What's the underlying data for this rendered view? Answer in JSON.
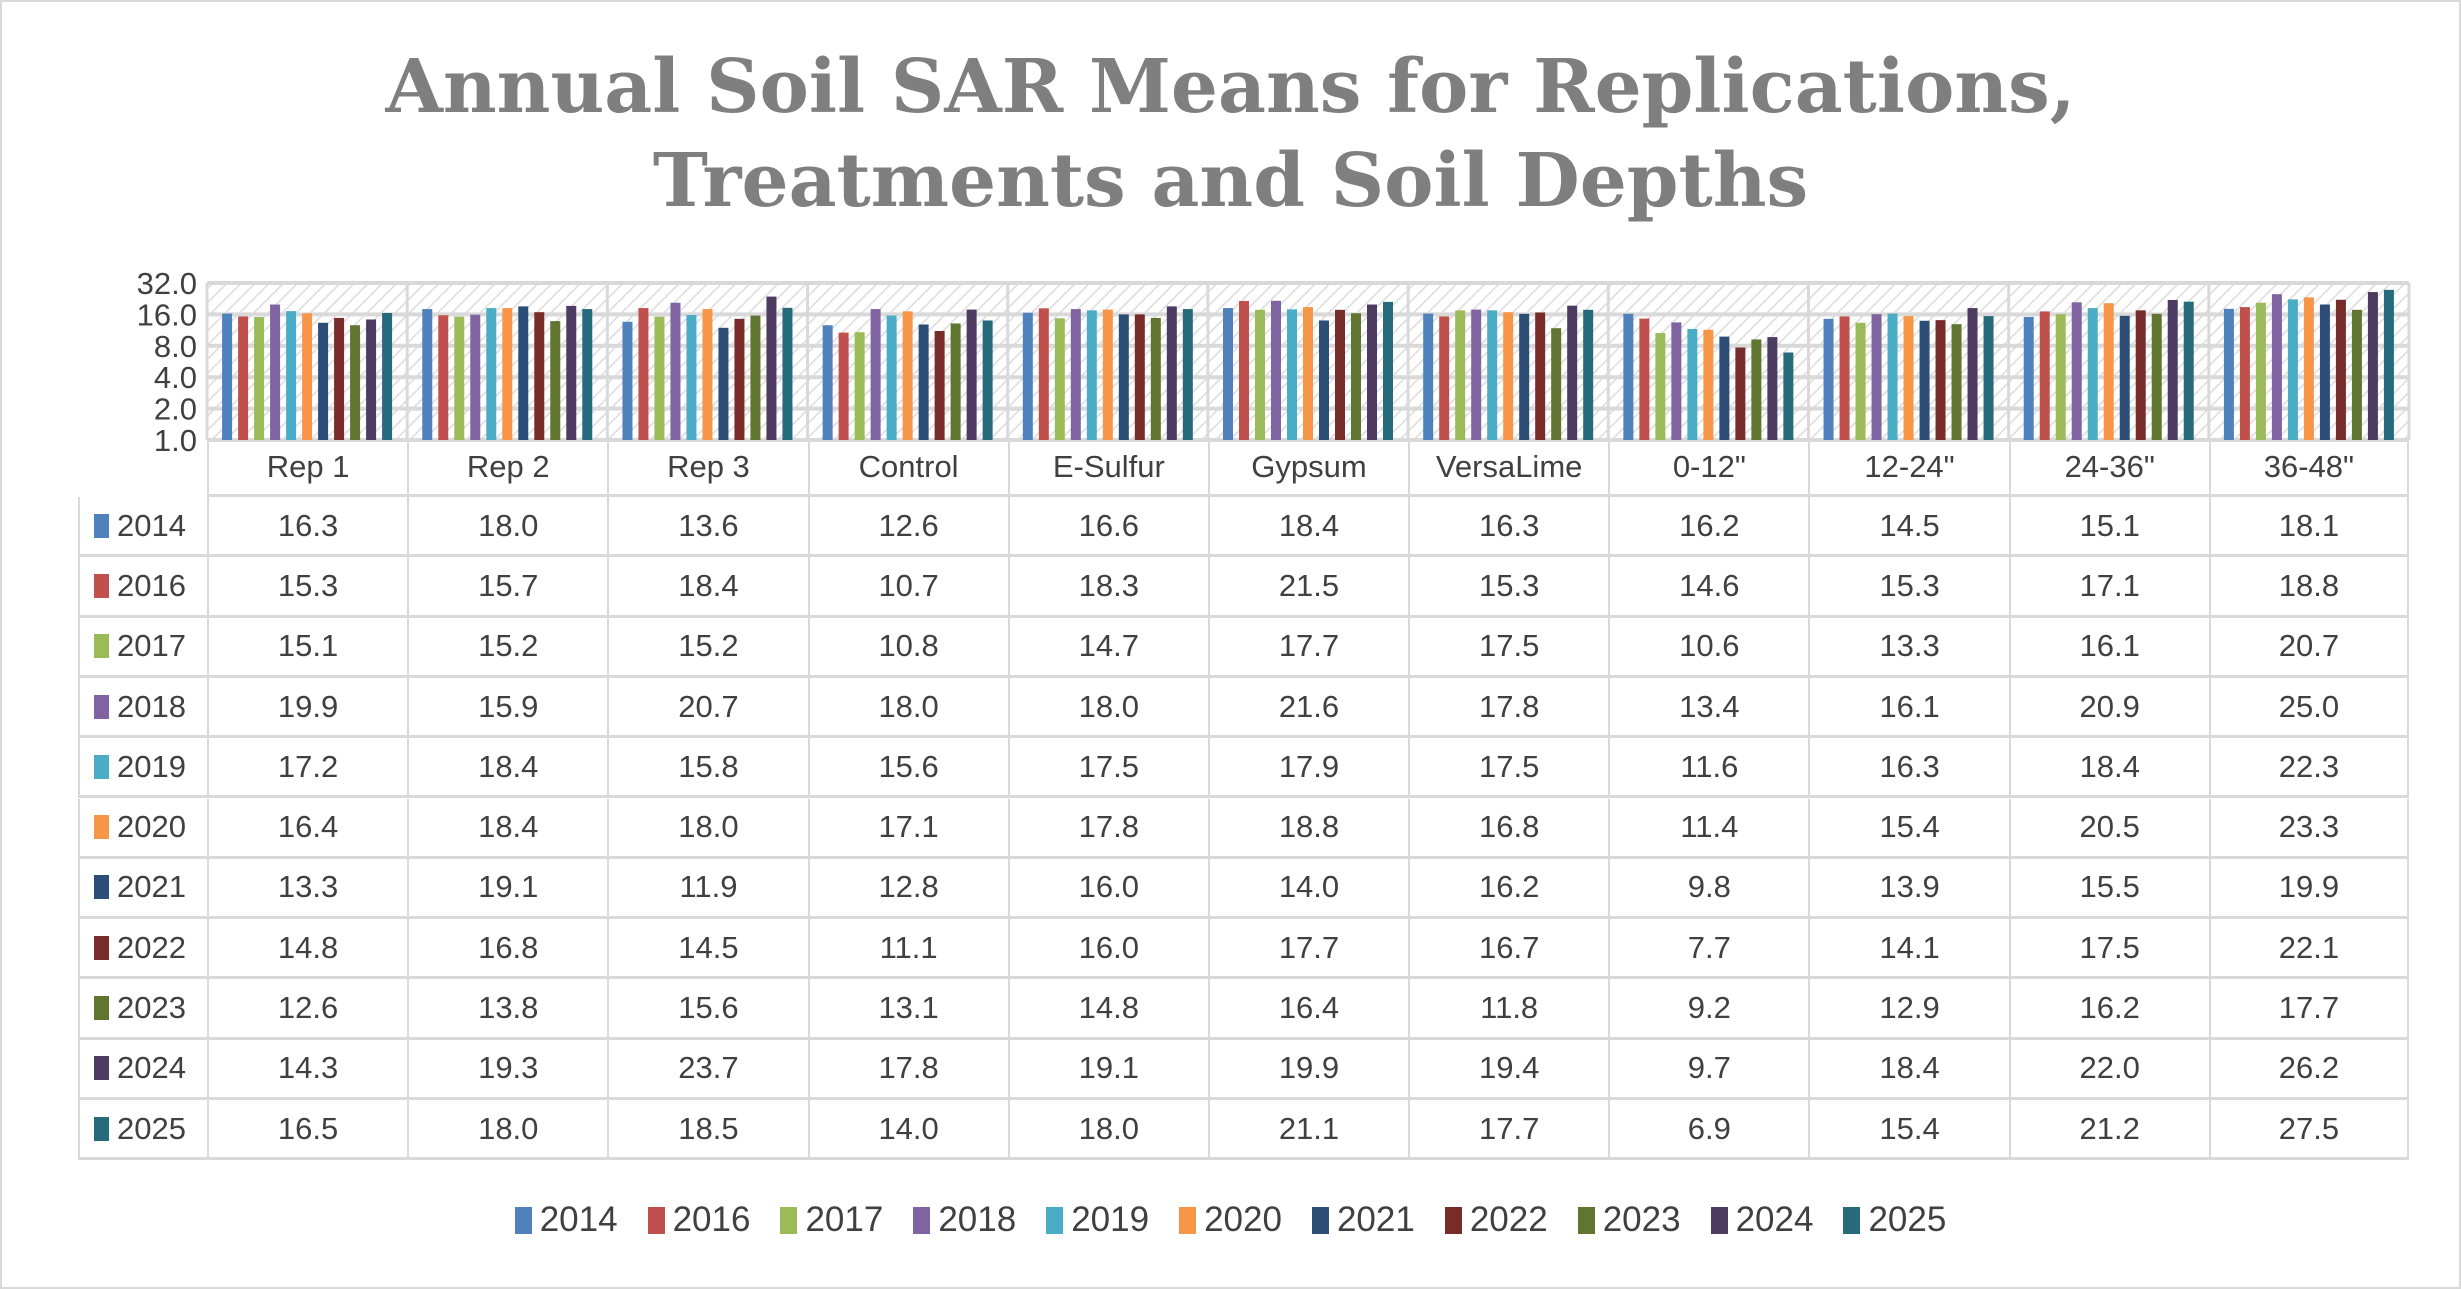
{
  "chart_data": {
    "type": "bar",
    "title": "Annual Soil SAR Means for Replications, Treatments and Soil Depths",
    "title_lines": [
      "Annual Soil SAR Means for Replications,",
      "Treatments and Soil Depths"
    ],
    "categories": [
      "Rep 1",
      "Rep 2",
      "Rep 3",
      "Control",
      "E-Sulfur",
      "Gypsum",
      "VersaLime",
      "0-12\"",
      "12-24\"",
      "24-36\"",
      "36-48\""
    ],
    "y_scale": "log2",
    "ylim": [
      1,
      32
    ],
    "yticks": [
      "32.0",
      "16.0",
      "8.0",
      "4.0",
      "2.0",
      "1.0"
    ],
    "grid": true,
    "legend_placement": "bottom",
    "data_table": true,
    "series": [
      {
        "name": "2014",
        "color": "#4f81bd",
        "values": [
          16.3,
          18.0,
          13.6,
          12.6,
          16.6,
          18.4,
          16.3,
          16.2,
          14.5,
          15.1,
          18.1
        ]
      },
      {
        "name": "2016",
        "color": "#c0504d",
        "values": [
          15.3,
          15.7,
          18.4,
          10.7,
          18.3,
          21.5,
          15.3,
          14.6,
          15.3,
          17.1,
          18.8
        ]
      },
      {
        "name": "2017",
        "color": "#9bbb59",
        "values": [
          15.1,
          15.2,
          15.2,
          10.8,
          14.7,
          17.7,
          17.5,
          10.6,
          13.3,
          16.1,
          20.7
        ]
      },
      {
        "name": "2018",
        "color": "#8064a2",
        "values": [
          19.9,
          15.9,
          20.7,
          18.0,
          18.0,
          21.6,
          17.8,
          13.4,
          16.1,
          20.9,
          25.0
        ]
      },
      {
        "name": "2019",
        "color": "#4bacc6",
        "values": [
          17.2,
          18.4,
          15.8,
          15.6,
          17.5,
          17.9,
          17.5,
          11.6,
          16.3,
          18.4,
          22.3
        ]
      },
      {
        "name": "2020",
        "color": "#f79646",
        "values": [
          16.4,
          18.4,
          18.0,
          17.1,
          17.8,
          18.8,
          16.8,
          11.4,
          15.4,
          20.5,
          23.3
        ]
      },
      {
        "name": "2021",
        "color": "#2c4d75",
        "values": [
          13.3,
          19.1,
          11.9,
          12.8,
          16.0,
          14.0,
          16.2,
          9.8,
          13.9,
          15.5,
          19.9
        ]
      },
      {
        "name": "2022",
        "color": "#772c2a",
        "values": [
          14.8,
          16.8,
          14.5,
          11.1,
          16.0,
          17.7,
          16.7,
          7.7,
          14.1,
          17.5,
          22.1
        ]
      },
      {
        "name": "2023",
        "color": "#5f7530",
        "values": [
          12.6,
          13.8,
          15.6,
          13.1,
          14.8,
          16.4,
          11.8,
          9.2,
          12.9,
          16.2,
          17.7
        ]
      },
      {
        "name": "2024",
        "color": "#4d3b62",
        "values": [
          14.3,
          19.3,
          23.7,
          17.8,
          19.1,
          19.9,
          19.4,
          9.7,
          18.4,
          22.0,
          26.2
        ]
      },
      {
        "name": "2025",
        "color": "#276a7c",
        "values": [
          16.5,
          18.0,
          18.5,
          14.0,
          18.0,
          21.1,
          17.7,
          6.9,
          15.4,
          21.2,
          27.5
        ]
      }
    ]
  }
}
